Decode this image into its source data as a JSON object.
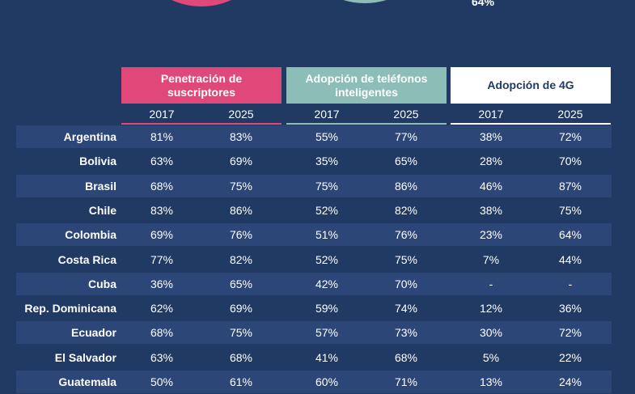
{
  "donut_label": "64%",
  "groups": [
    {
      "label": "Penetración de suscriptores"
    },
    {
      "label": "Adopción de teléfonos inteligentes"
    },
    {
      "label": "Adopción de 4G"
    }
  ],
  "years": [
    "2017",
    "2025",
    "2017",
    "2025",
    "2017",
    "2025"
  ],
  "colors": {
    "background": "#213a63",
    "pink": "#e0487a",
    "teal": "#8cbdb6",
    "white": "#ffffff",
    "row_alt": "#2c4677"
  },
  "chart_data": {
    "type": "table",
    "columns": [
      "Penetración de suscriptores 2017",
      "Penetración de suscriptores 2025",
      "Adopción de teléfonos inteligentes 2017",
      "Adopción de teléfonos inteligentes 2025",
      "Adopción de 4G 2017",
      "Adopción de 4G 2025"
    ],
    "rows": [
      {
        "country": "Argentina",
        "values": [
          "81%",
          "83%",
          "55%",
          "77%",
          "38%",
          "72%"
        ]
      },
      {
        "country": "Bolivia",
        "values": [
          "63%",
          "69%",
          "35%",
          "65%",
          "28%",
          "70%"
        ]
      },
      {
        "country": "Brasil",
        "values": [
          "68%",
          "75%",
          "75%",
          "86%",
          "46%",
          "87%"
        ]
      },
      {
        "country": "Chile",
        "values": [
          "83%",
          "86%",
          "52%",
          "82%",
          "38%",
          "75%"
        ]
      },
      {
        "country": "Colombia",
        "values": [
          "69%",
          "76%",
          "51%",
          "76%",
          "23%",
          "64%"
        ]
      },
      {
        "country": "Costa Rica",
        "values": [
          "77%",
          "82%",
          "52%",
          "75%",
          "7%",
          "44%"
        ]
      },
      {
        "country": "Cuba",
        "values": [
          "36%",
          "65%",
          "42%",
          "70%",
          "-",
          "-"
        ]
      },
      {
        "country": "Rep. Dominicana",
        "values": [
          "62%",
          "69%",
          "59%",
          "74%",
          "12%",
          "36%"
        ]
      },
      {
        "country": "Ecuador",
        "values": [
          "68%",
          "75%",
          "57%",
          "73%",
          "30%",
          "72%"
        ]
      },
      {
        "country": "El Salvador",
        "values": [
          "63%",
          "68%",
          "41%",
          "68%",
          "5%",
          "22%"
        ]
      },
      {
        "country": "Guatemala",
        "values": [
          "50%",
          "61%",
          "60%",
          "71%",
          "13%",
          "24%"
        ]
      }
    ]
  }
}
